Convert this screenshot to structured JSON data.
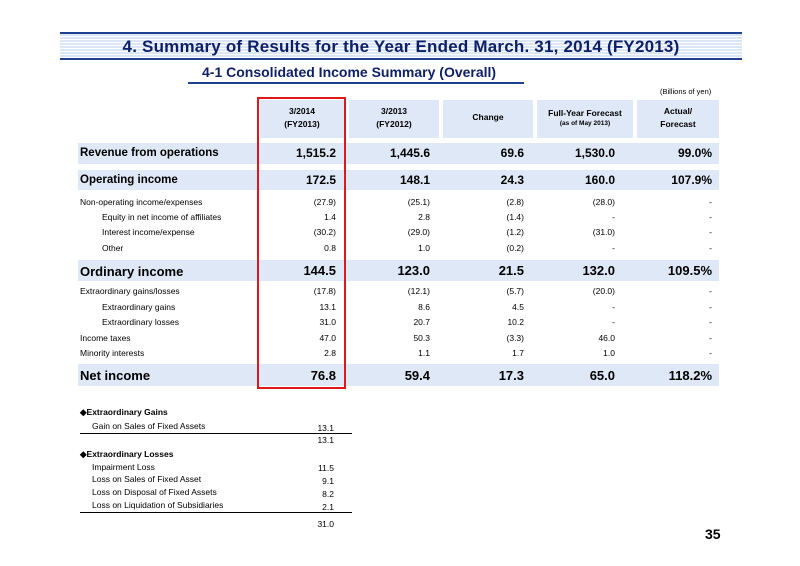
{
  "title": "4. Summary of Results for the Year Ended March. 31, 2014 (FY2013)",
  "subtitle": "4-1  Consolidated Income Summary (Overall)",
  "units": "(Billions of yen)",
  "columns": [
    {
      "line1": "3/2014",
      "line2": "(FY2013)"
    },
    {
      "line1": "3/2013",
      "line2": "(FY2012)"
    },
    {
      "line1": "Change",
      "line2": ""
    },
    {
      "line1": "Full-Year Forecast",
      "line2": "(as of May 2013)"
    },
    {
      "line1": "Actual/",
      "line2": "Forecast"
    }
  ],
  "rows": [
    {
      "label": "Revenue from operations",
      "values": [
        "1,515.2",
        "1,445.6",
        "69.6",
        "1,530.0",
        "99.0%"
      ]
    },
    {
      "label": "Operating income",
      "values": [
        "172.5",
        "148.1",
        "24.3",
        "160.0",
        "107.9%"
      ]
    },
    {
      "label": "Non-operating income/expenses",
      "values": [
        "(27.9)",
        "(25.1)",
        "(2.8)",
        "(28.0)",
        "-"
      ]
    },
    {
      "label": "Equity in net income of affiliates",
      "values": [
        "1.4",
        "2.8",
        "(1.4)",
        "-",
        "-"
      ]
    },
    {
      "label": "Interest income/expense",
      "values": [
        "(30.2)",
        "(29.0)",
        "(1.2)",
        "(31.0)",
        "-"
      ]
    },
    {
      "label": "Other",
      "values": [
        "0.8",
        "1.0",
        "(0.2)",
        "-",
        "-"
      ]
    },
    {
      "label": "Ordinary income",
      "values": [
        "144.5",
        "123.0",
        "21.5",
        "132.0",
        "109.5%"
      ]
    },
    {
      "label": "Extraordinary gains/losses",
      "values": [
        "(17.8)",
        "(12.1)",
        "(5.7)",
        "(20.0)",
        "-"
      ]
    },
    {
      "label": "Extraordinary gains",
      "values": [
        "13.1",
        "8.6",
        "4.5",
        "-",
        "-"
      ]
    },
    {
      "label": "Extraordinary losses",
      "values": [
        "31.0",
        "20.7",
        "10.2",
        "-",
        "-"
      ]
    },
    {
      "label": "Income taxes",
      "values": [
        "47.0",
        "50.3",
        "(3.3)",
        "46.0",
        "-"
      ]
    },
    {
      "label": "Minority interests",
      "values": [
        "2.8",
        "1.1",
        "1.7",
        "1.0",
        "-"
      ]
    },
    {
      "label": "Net income",
      "values": [
        "76.8",
        "59.4",
        "17.3",
        "65.0",
        "118.2%"
      ]
    }
  ],
  "gains": {
    "heading": "◆Extraordinary Gains",
    "items": [
      {
        "label": "Gain on Sales of Fixed Assets",
        "value": "13.1"
      }
    ],
    "total": "13.1"
  },
  "losses": {
    "heading": "◆Extraordinary Losses",
    "items": [
      {
        "label": "Impairment Loss",
        "value": "11.5"
      },
      {
        "label": "Loss on Sales of Fixed Asset",
        "value": "9.1"
      },
      {
        "label": "Loss on Disposal of Fixed Assets",
        "value": "8.2"
      },
      {
        "label": "Loss on Liquidation of Subsidiaries",
        "value": "2.1"
      }
    ],
    "total": "31.0"
  },
  "page_number": "35",
  "colors": {
    "navy": "#0d1f66",
    "band": "#dfe8f6",
    "highlight": "#e0181c"
  }
}
